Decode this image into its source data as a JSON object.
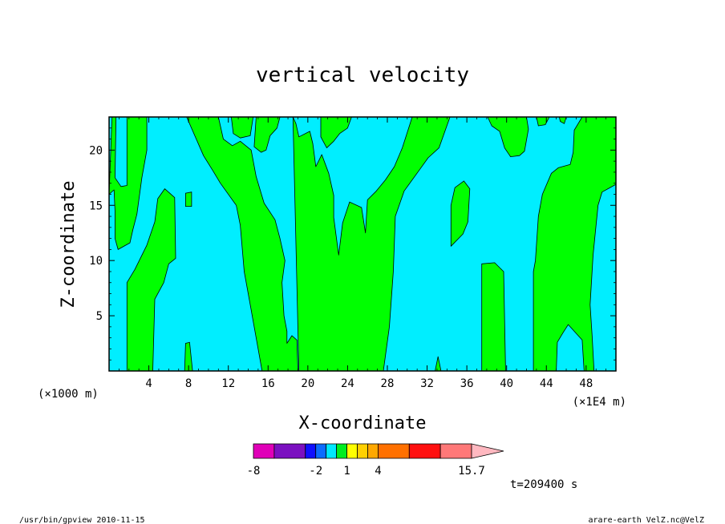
{
  "chart_data": {
    "type": "heatmap",
    "title": "vertical velocity",
    "xlabel": "X-coordinate",
    "ylabel": "Z-coordinate",
    "x_unit_left": "(×1000 m)",
    "x_unit_right": "(×1E4 m)",
    "xlim": [
      0,
      51
    ],
    "ylim": [
      0,
      23
    ],
    "xticks": [
      4,
      8,
      12,
      16,
      20,
      24,
      28,
      32,
      36,
      40,
      44,
      48
    ],
    "yticks": [
      5,
      10,
      15,
      20
    ],
    "colors": {
      "positive": "#00ff00",
      "near_zero": "#00eeff",
      "contour": "#000000"
    },
    "positive_regions": [
      [
        [
          0,
          16
        ],
        [
          0.3,
          23
        ],
        [
          0.7,
          23
        ],
        [
          0.6,
          17.5
        ],
        [
          1.2,
          16.7
        ],
        [
          1.8,
          16.8
        ],
        [
          1.8,
          23
        ],
        [
          3.8,
          23
        ],
        [
          3.8,
          20
        ],
        [
          3.3,
          17.5
        ],
        [
          2.8,
          14.2
        ],
        [
          2.4,
          12.8
        ],
        [
          2.1,
          11.6
        ],
        [
          0.9,
          11
        ],
        [
          0.6,
          12
        ],
        [
          0.6,
          14.5
        ],
        [
          0.5,
          16.4
        ]
      ],
      [
        [
          1.8,
          0
        ],
        [
          1.8,
          8
        ],
        [
          2.6,
          9.2
        ],
        [
          3.8,
          11.4
        ],
        [
          4.6,
          13.5
        ],
        [
          4.9,
          15.6
        ],
        [
          5.6,
          16.5
        ],
        [
          6.6,
          15.7
        ],
        [
          6.7,
          10.2
        ],
        [
          6,
          9.7
        ],
        [
          5.5,
          8
        ],
        [
          4.6,
          6.5
        ],
        [
          4.4,
          0
        ]
      ],
      [
        [
          7.7,
          16.1
        ],
        [
          8.3,
          16.2
        ],
        [
          8.3,
          14.9
        ],
        [
          7.7,
          14.9
        ]
      ],
      [
        [
          7.6,
          0
        ],
        [
          7.7,
          2.5
        ],
        [
          8.1,
          2.6
        ],
        [
          8.4,
          0
        ]
      ],
      [
        [
          7.8,
          23
        ],
        [
          9.5,
          19.5
        ],
        [
          10.4,
          18.2
        ],
        [
          11.2,
          17
        ],
        [
          12.8,
          15
        ],
        [
          13.2,
          13.2
        ],
        [
          13.6,
          9
        ],
        [
          14.2,
          6
        ],
        [
          14.8,
          3
        ],
        [
          15.4,
          0
        ],
        [
          19,
          0
        ],
        [
          18.9,
          2.8
        ],
        [
          18.4,
          3.2
        ],
        [
          17.9,
          2.5
        ],
        [
          17.9,
          3.6
        ],
        [
          17.6,
          5
        ],
        [
          17.4,
          8
        ],
        [
          17.7,
          10
        ],
        [
          17.2,
          12
        ],
        [
          16.7,
          13.7
        ],
        [
          15.6,
          15.2
        ],
        [
          14.8,
          17.6
        ],
        [
          14.3,
          20
        ],
        [
          13.2,
          20.8
        ],
        [
          12.4,
          20.4
        ],
        [
          11.5,
          21
        ],
        [
          11,
          23
        ]
      ],
      [
        [
          12.3,
          23
        ],
        [
          12.5,
          21.5
        ],
        [
          13.2,
          21.1
        ],
        [
          14.2,
          21.3
        ],
        [
          14.5,
          23
        ]
      ],
      [
        [
          14.8,
          23
        ],
        [
          14.6,
          20.3
        ],
        [
          15.3,
          19.8
        ],
        [
          15.8,
          20
        ],
        [
          16.2,
          21.3
        ],
        [
          16.9,
          22
        ],
        [
          17.2,
          23
        ]
      ],
      [
        [
          18.5,
          23
        ],
        [
          19.1,
          0
        ],
        [
          27.6,
          0
        ],
        [
          28.2,
          4
        ],
        [
          28.6,
          9
        ],
        [
          28.8,
          14
        ],
        [
          29.7,
          16.3
        ],
        [
          31.3,
          18.3
        ],
        [
          32.1,
          19.3
        ],
        [
          33.2,
          20.2
        ],
        [
          34.3,
          23
        ],
        [
          30.5,
          23
        ],
        [
          29.5,
          20.2
        ],
        [
          28.7,
          18.5
        ],
        [
          27.8,
          17.3
        ],
        [
          26.9,
          16.3
        ],
        [
          26,
          15.5
        ],
        [
          25.8,
          12.5
        ],
        [
          25.4,
          14.8
        ],
        [
          24.2,
          15.3
        ],
        [
          23.5,
          13.4
        ],
        [
          23.1,
          10.5
        ],
        [
          22.6,
          13.9
        ],
        [
          22.6,
          15.9
        ],
        [
          22.1,
          17.9
        ],
        [
          21.4,
          19.6
        ],
        [
          20.8,
          18.5
        ],
        [
          20.5,
          20.6
        ],
        [
          20.2,
          21.7
        ],
        [
          19.1,
          21.2
        ],
        [
          18.8,
          22.4
        ]
      ],
      [
        [
          21.3,
          23
        ],
        [
          21.3,
          21.2
        ],
        [
          21.9,
          20.2
        ],
        [
          22.6,
          20.8
        ],
        [
          23.2,
          21.5
        ],
        [
          24,
          22
        ],
        [
          24.4,
          23
        ]
      ],
      [
        [
          32.8,
          0
        ],
        [
          33.1,
          1.3
        ],
        [
          33.4,
          0
        ]
      ],
      [
        [
          34.4,
          15
        ],
        [
          34.8,
          16.6
        ],
        [
          35.7,
          17.2
        ],
        [
          36.3,
          16.5
        ],
        [
          36.1,
          13.5
        ],
        [
          35.6,
          12.4
        ],
        [
          34.4,
          11.3
        ]
      ],
      [
        [
          37.5,
          0
        ],
        [
          37.5,
          9.7
        ],
        [
          38.8,
          9.8
        ],
        [
          39.7,
          9
        ],
        [
          39.9,
          0
        ]
      ],
      [
        [
          38.1,
          23
        ],
        [
          38.5,
          22.2
        ],
        [
          39.3,
          21.7
        ],
        [
          39.8,
          20.2
        ],
        [
          40.4,
          19.4
        ],
        [
          41.3,
          19.5
        ],
        [
          41.8,
          19.9
        ],
        [
          42.2,
          21.9
        ],
        [
          42,
          23
        ]
      ],
      [
        [
          43,
          23
        ],
        [
          43.2,
          22.2
        ],
        [
          43.9,
          22.3
        ],
        [
          44.3,
          23
        ]
      ],
      [
        [
          45.3,
          23
        ],
        [
          45.4,
          22.6
        ],
        [
          45.8,
          22.4
        ],
        [
          46,
          23
        ]
      ],
      [
        [
          42.7,
          0
        ],
        [
          42.7,
          9
        ],
        [
          42.9,
          10
        ],
        [
          43.2,
          14
        ],
        [
          43.6,
          16
        ],
        [
          44.5,
          17.9
        ],
        [
          45.2,
          18.4
        ],
        [
          46.4,
          18.7
        ],
        [
          46.7,
          19.8
        ],
        [
          46.8,
          21.8
        ],
        [
          47.6,
          23
        ],
        [
          51,
          23
        ],
        [
          51,
          16.9
        ],
        [
          49.6,
          16.2
        ],
        [
          49.2,
          15
        ],
        [
          48.7,
          10.5
        ],
        [
          48.4,
          6
        ],
        [
          48.6,
          3.2
        ],
        [
          48.8,
          0
        ],
        [
          47.8,
          0
        ],
        [
          47.6,
          2.8
        ],
        [
          46.2,
          4.2
        ],
        [
          45.7,
          3.5
        ],
        [
          45.1,
          2.6
        ],
        [
          45,
          0
        ]
      ]
    ],
    "colorbar": {
      "levels": [
        -8,
        -7,
        -6,
        -5,
        -4,
        -3,
        -2,
        -1,
        0,
        1,
        2,
        3,
        4,
        5,
        6,
        7,
        8,
        9,
        10,
        11,
        12,
        13,
        14,
        15,
        15.7
      ],
      "labels": [
        "-8",
        "-2",
        "1",
        "4",
        "15.7"
      ],
      "colors": [
        "#e000b8",
        "#7b10c0",
        "#1010ff",
        "#0c6cff",
        "#00e8ff",
        "#00ee20",
        "#ffff00",
        "#ffd000",
        "#ffa800",
        "#ff7000",
        "#ff1010",
        "#ff7878",
        "#ffb8c0"
      ]
    },
    "annotation": "t=209400 s"
  },
  "footer": {
    "left": "/usr/bin/gpview   2010-11-15",
    "right": "arare-earth_VelZ.nc@VelZ"
  }
}
